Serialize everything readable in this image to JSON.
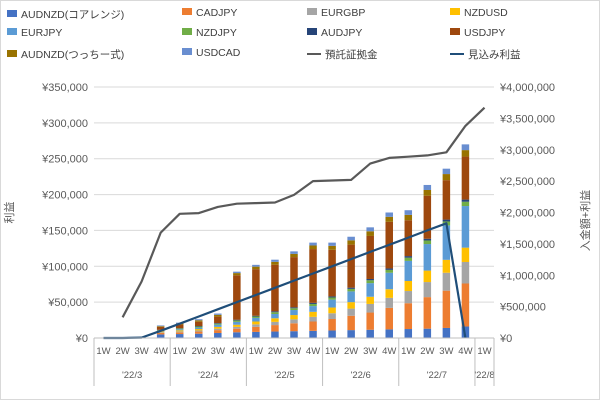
{
  "chart_data": {
    "type": "bar",
    "stacked": true,
    "categories": [
      "1W",
      "2W",
      "3W",
      "4W",
      "1W",
      "2W",
      "3W",
      "4W",
      "1W",
      "2W",
      "3W",
      "4W",
      "1W",
      "2W",
      "3W",
      "4W",
      "1W",
      "2W",
      "3W",
      "4W",
      "1W"
    ],
    "months": [
      {
        "label": "'22/3",
        "start": 0,
        "end": 3
      },
      {
        "label": "'22/4",
        "start": 4,
        "end": 7
      },
      {
        "label": "'22/5",
        "start": 8,
        "end": 11
      },
      {
        "label": "'22/6",
        "start": 12,
        "end": 15
      },
      {
        "label": "'22/7",
        "start": 16,
        "end": 19
      },
      {
        "label": "'22/8",
        "start": 20,
        "end": 20
      }
    ],
    "ylabel": "利益",
    "ylabel_right": "入金額+利益",
    "ylim": [
      0,
      350000
    ],
    "ylim_right": [
      0,
      4000000
    ],
    "yticks": [
      "¥0",
      "¥50,000",
      "¥100,000",
      "¥150,000",
      "¥200,000",
      "¥250,000",
      "¥300,000",
      "¥350,000"
    ],
    "yticks_right": [
      "¥0",
      "¥500,000",
      "¥1,000,000",
      "¥1,500,000",
      "¥2,000,000",
      "¥2,500,000",
      "¥3,000,000",
      "¥3,500,000",
      "¥4,000,000"
    ],
    "grid": true,
    "legend_position": "top",
    "series": [
      {
        "name": "AUDNZD(コアレンジ)",
        "color": "#4472c4",
        "values": [
          0,
          0,
          0,
          5000,
          5500,
          6000,
          7000,
          8000,
          8500,
          9000,
          9500,
          10000,
          10500,
          11000,
          11500,
          12000,
          12500,
          13000,
          14000,
          16000,
          0
        ]
      },
      {
        "name": "CADJPY",
        "color": "#ed7d31",
        "values": [
          0,
          0,
          0,
          2000,
          2500,
          3000,
          4000,
          5000,
          7000,
          9000,
          11000,
          13000,
          16000,
          20000,
          24000,
          30000,
          36000,
          44000,
          52000,
          60000,
          0
        ]
      },
      {
        "name": "EURGBP",
        "color": "#a5a5a5",
        "values": [
          0,
          0,
          0,
          1000,
          1200,
          1500,
          2000,
          2500,
          3500,
          4500,
          5500,
          6500,
          8000,
          10000,
          12000,
          14000,
          17000,
          21000,
          25000,
          30000,
          0
        ]
      },
      {
        "name": "NZDUSD",
        "color": "#ffc000",
        "values": [
          0,
          0,
          0,
          1000,
          1500,
          2000,
          2500,
          3000,
          4000,
          5000,
          6000,
          7000,
          8000,
          9000,
          10000,
          12000,
          14000,
          16000,
          18000,
          20000,
          0
        ]
      },
      {
        "name": "EURJPY",
        "color": "#5b9bd5",
        "values": [
          0,
          0,
          0,
          1000,
          1500,
          2000,
          3000,
          4000,
          5000,
          6000,
          7000,
          8000,
          11000,
          15000,
          19000,
          23000,
          28000,
          37000,
          48000,
          58000,
          0
        ]
      },
      {
        "name": "NZDJPY",
        "color": "#70ad47",
        "values": [
          0,
          0,
          0,
          1000,
          1000,
          1500,
          1500,
          2000,
          2000,
          2500,
          2500,
          3000,
          3000,
          3500,
          4000,
          4000,
          4500,
          5000,
          5500,
          6000,
          0
        ]
      },
      {
        "name": "AUDJPY",
        "color": "#264478",
        "values": [
          0,
          0,
          0,
          500,
          500,
          700,
          800,
          1000,
          1000,
          1200,
          1300,
          1500,
          1500,
          1700,
          1800,
          2000,
          2200,
          2400,
          2600,
          3000,
          0
        ]
      },
      {
        "name": "USDJPY",
        "color": "#9e480e",
        "values": [
          0,
          0,
          0,
          4000,
          5000,
          6000,
          9000,
          62000,
          65000,
          65000,
          70000,
          75000,
          65000,
          60000,
          60000,
          65000,
          50000,
          60000,
          55000,
          60000,
          0
        ]
      },
      {
        "name": "AUDNZD(つっちー式)",
        "color": "#997300",
        "values": [
          0,
          0,
          0,
          1000,
          1500,
          2000,
          2500,
          3000,
          3500,
          4000,
          4500,
          5000,
          5500,
          6000,
          6500,
          7000,
          7500,
          8000,
          8500,
          9000,
          0
        ]
      },
      {
        "name": "USDCAD",
        "color": "#698ed0",
        "values": [
          0,
          0,
          0,
          1000,
          1200,
          1500,
          1800,
          2000,
          2500,
          3000,
          3500,
          4000,
          4500,
          5000,
          5500,
          6000,
          6500,
          7000,
          7500,
          8000,
          0
        ]
      }
    ],
    "lines": [
      {
        "name": "預託証拠金",
        "color": "#595959",
        "axis": "right",
        "start": 1,
        "values": [
          330000,
          900000,
          1680000,
          1980000,
          1990000,
          2090000,
          2140000,
          2150000,
          2160000,
          2280000,
          2500000,
          2510000,
          2520000,
          2780000,
          2870000,
          2890000,
          2910000,
          2960000,
          3380000,
          3670000
        ]
      },
      {
        "name": "見込み利益",
        "color": "#1f4e79",
        "axis": "left",
        "start": 0,
        "values": [
          0,
          0,
          500,
          10000,
          20000,
          30000,
          40000,
          50000,
          60000,
          70000,
          80000,
          90000,
          100000,
          110000,
          120000,
          130000,
          140000,
          150000,
          160000,
          0
        ]
      }
    ]
  }
}
